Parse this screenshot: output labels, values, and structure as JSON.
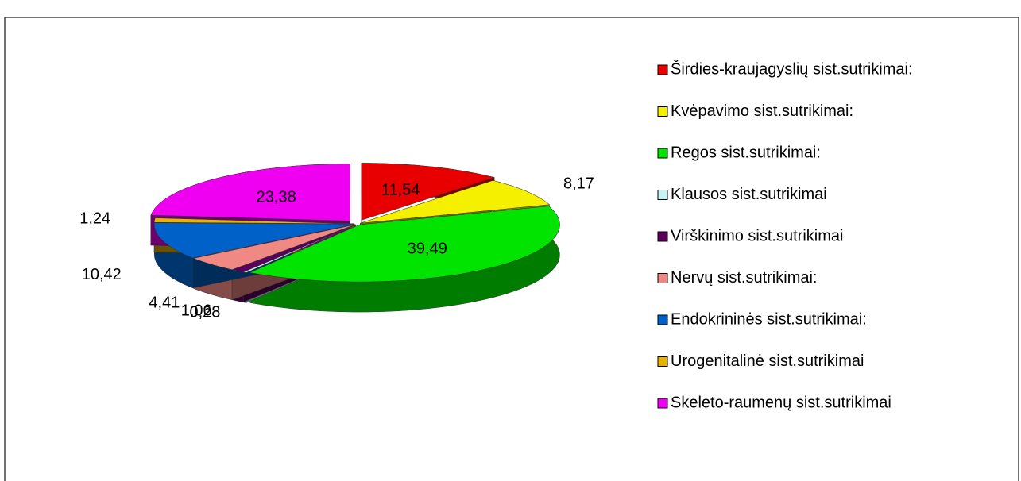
{
  "chart_data": {
    "type": "pie",
    "categories": [
      "Širdies-kraujagyslių sist.sutrikimai:",
      "Kvėpavimo sist.sutrikimai:",
      "Regos sist.sutrikimai:",
      "Klausos sist.sutrikimai",
      "Virškinimo sist.sutrikimai",
      "Nervų sist.sutrikimai:",
      "Endokrininės sist.sutrikimai:",
      "Urogenitalinė sist.sutrikimai",
      "Skeleto-raumenų sist.sutrikimai"
    ],
    "values": [
      11.54,
      8.17,
      39.49,
      0.28,
      1.06,
      4.41,
      10.42,
      1.24,
      23.38
    ],
    "value_labels": [
      "11,54",
      "8,17",
      "39,49",
      "0,28",
      "1,06",
      "4,41",
      "10,42",
      "1,24",
      "23,38"
    ],
    "colors": [
      "#e80000",
      "#f4f000",
      "#00e400",
      "#c8f4f4",
      "#5a005a",
      "#f08884",
      "#0062c8",
      "#e8b400",
      "#f000f0"
    ],
    "legend": "right"
  }
}
